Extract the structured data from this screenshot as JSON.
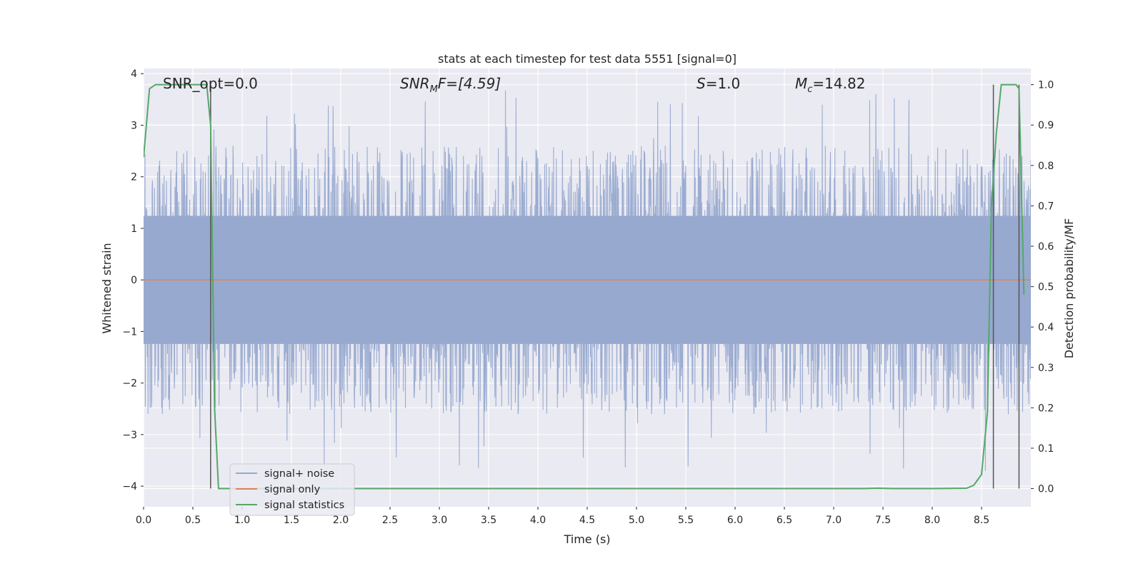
{
  "chart_data": {
    "type": "line",
    "title": "stats at each timestep for test data 5551 [signal=0]",
    "xlabel": "Time (s)",
    "ylabel": "Whitened strain",
    "y2label": "Detection probability/MF",
    "xlim": [
      0,
      9.0
    ],
    "ylim": [
      -4.4,
      4.1
    ],
    "y2lim": [
      -0.045,
      1.04
    ],
    "x_ticks": [
      0.0,
      0.5,
      1.0,
      1.5,
      2.0,
      2.5,
      3.0,
      3.5,
      4.0,
      4.5,
      5.0,
      5.5,
      6.0,
      6.5,
      7.0,
      7.5,
      8.0,
      8.5
    ],
    "x_tick_labels": [
      "0.0",
      "0.5",
      "1.0",
      "1.5",
      "2.0",
      "2.5",
      "3.0",
      "3.5",
      "4.0",
      "4.5",
      "5.0",
      "5.5",
      "6.0",
      "6.5",
      "7.0",
      "7.5",
      "8.0",
      "8.5"
    ],
    "y_ticks": [
      -4,
      -3,
      -2,
      -1,
      0,
      1,
      2,
      3,
      4
    ],
    "y_tick_labels": [
      "−4",
      "−3",
      "−2",
      "−1",
      "0",
      "1",
      "2",
      "3",
      "4"
    ],
    "y2_ticks": [
      0.0,
      0.1,
      0.2,
      0.3,
      0.4,
      0.5,
      0.6,
      0.7,
      0.8,
      0.9,
      1.0
    ],
    "y2_tick_labels": [
      "0.0",
      "0.1",
      "0.2",
      "0.3",
      "0.4",
      "0.5",
      "0.6",
      "0.7",
      "0.8",
      "0.9",
      "1.0"
    ],
    "grid": true,
    "legend_position": "lower-left",
    "legend": [
      "signal+ noise",
      "signal only",
      "signal statistics"
    ],
    "annotations": {
      "snr_opt": "SNR_opt=0.0",
      "snr_mf_base": "SNR",
      "snr_mf_sub": "M",
      "snr_mf_rest": "F=[4.59]",
      "s_symbol": "S",
      "s_value": "=1.0",
      "mc_base": "M",
      "mc_sub": "c",
      "mc_value": "=14.82"
    },
    "series": [
      {
        "name": "signal+ noise",
        "axis": "left",
        "color": "#97a9cf",
        "noise_envelope": {
          "core_abs": 1.35,
          "typical_peak": 2.6,
          "max_peak": 3.7
        }
      },
      {
        "name": "signal only",
        "axis": "left",
        "color": "#dd8452",
        "x": [
          0.0,
          9.0
        ],
        "y": [
          0.0,
          0.0
        ]
      },
      {
        "name": "signal statistics",
        "axis": "right",
        "color": "#55a868",
        "x": [
          0.0,
          0.06,
          0.12,
          0.2,
          0.3,
          0.4,
          0.5,
          0.6,
          0.64,
          0.68,
          0.72,
          0.76,
          1.0,
          2.0,
          3.0,
          4.0,
          5.0,
          6.0,
          7.0,
          7.3,
          7.45,
          7.6,
          8.0,
          8.35,
          8.42,
          8.5,
          8.56,
          8.6,
          8.65,
          8.7,
          8.75,
          8.85,
          8.88,
          8.93
        ],
        "y": [
          0.82,
          0.99,
          1.0,
          1.0,
          1.0,
          1.0,
          1.0,
          1.0,
          1.0,
          0.9,
          0.2,
          0.0,
          0.0,
          0.0,
          0.0,
          0.0,
          0.0,
          0.0,
          0.0,
          0.0,
          0.001,
          0.0,
          0.0,
          0.001,
          0.008,
          0.035,
          0.19,
          0.7,
          0.88,
          1.0,
          1.0,
          1.0,
          0.99,
          0.48
        ]
      }
    ],
    "vertical_markers_x": [
      0.68,
      8.62,
      8.88
    ],
    "vertical_marker_color": "#555555"
  }
}
